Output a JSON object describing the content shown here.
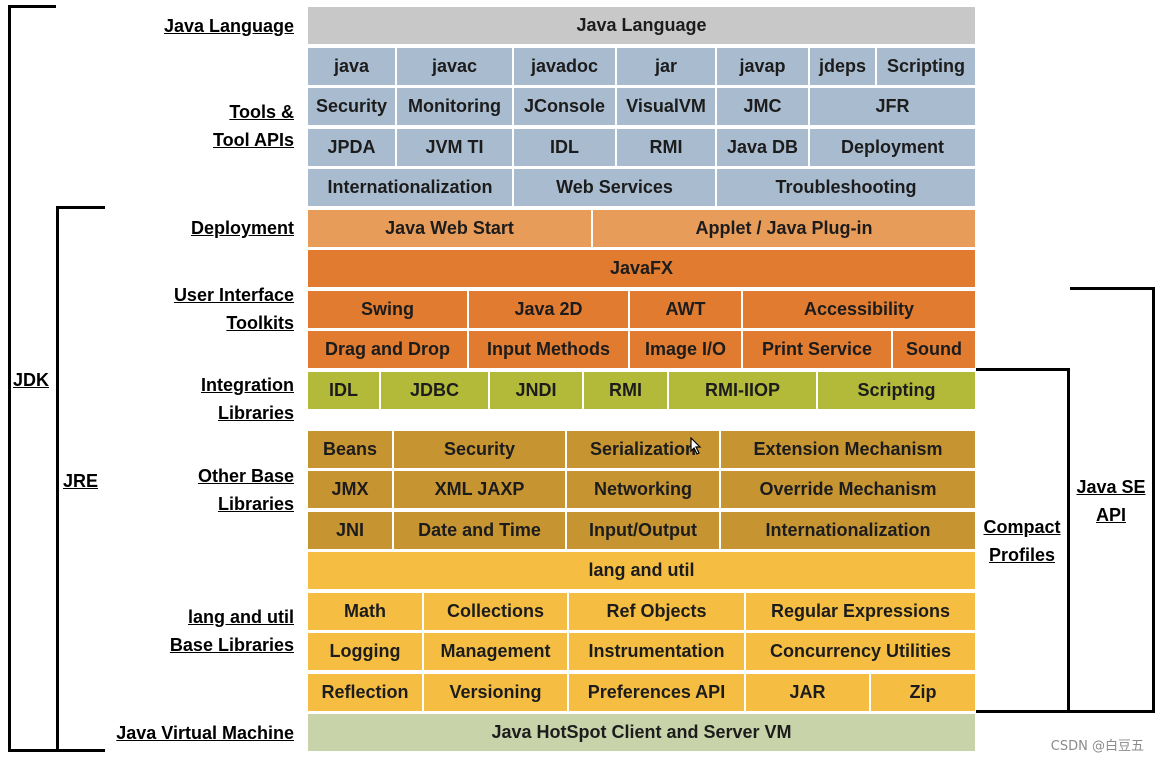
{
  "colors": {
    "java_language": "#c8c8c8",
    "tools": "#a9bccf",
    "deployment": "#e89c5a",
    "ui_toolkits": "#e07b30",
    "integration": "#b3b938",
    "other_base": "#c79432",
    "lang_util": "#f5be42",
    "jvm": "#c8d3aa"
  },
  "left_labels": {
    "java_language": "Java Language",
    "tools_line1": "Tools &",
    "tools_line2": "Tool APIs",
    "deployment": "Deployment",
    "ui_line1": "User Interface",
    "ui_line2": "Toolkits",
    "integration_line1": "Integration",
    "integration_line2": "Libraries",
    "other_line1": "Other Base",
    "other_line2": "Libraries",
    "langutil_line1": "lang and util",
    "langutil_line2": "Base Libraries",
    "jvm": "Java Virtual Machine"
  },
  "brackets": {
    "jdk": "JDK",
    "jre": "JRE",
    "compact_line1": "Compact",
    "compact_line2": "Profiles",
    "javase_line1": "Java SE",
    "javase_line2": "API"
  },
  "rows": {
    "java_language": [
      "Java Language"
    ],
    "tools1": [
      "java",
      "javac",
      "javadoc",
      "jar",
      "javap",
      "jdeps",
      "Scripting"
    ],
    "tools2": [
      "Security",
      "Monitoring",
      "JConsole",
      "VisualVM",
      "JMC",
      "JFR"
    ],
    "tools3": [
      "JPDA",
      "JVM TI",
      "IDL",
      "RMI",
      "Java DB",
      "Deployment"
    ],
    "tools4": [
      "Internationalization",
      "Web Services",
      "Troubleshooting"
    ],
    "deployment": [
      "Java Web Start",
      "Applet / Java Plug-in"
    ],
    "javafx": [
      "JavaFX"
    ],
    "ui1": [
      "Swing",
      "Java 2D",
      "AWT",
      "Accessibility"
    ],
    "ui2": [
      "Drag and Drop",
      "Input Methods",
      "Image I/O",
      "Print Service",
      "Sound"
    ],
    "integration": [
      "IDL",
      "JDBC",
      "JNDI",
      "RMI",
      "RMI-IIOP",
      "Scripting"
    ],
    "other1": [
      "Beans",
      "Security",
      "Serialization",
      "Extension Mechanism"
    ],
    "other2": [
      "JMX",
      "XML JAXP",
      "Networking",
      "Override Mechanism"
    ],
    "other3": [
      "JNI",
      "Date and Time",
      "Input/Output",
      "Internationalization"
    ],
    "lang_util": [
      "lang and util"
    ],
    "lu1": [
      "Math",
      "Collections",
      "Ref Objects",
      "Regular Expressions"
    ],
    "lu2": [
      "Logging",
      "Management",
      "Instrumentation",
      "Concurrency Utilities"
    ],
    "lu3": [
      "Reflection",
      "Versioning",
      "Preferences API",
      "JAR",
      "Zip"
    ],
    "jvm": [
      "Java HotSpot Client and Server VM"
    ]
  },
  "watermark": "CSDN @白豆五"
}
